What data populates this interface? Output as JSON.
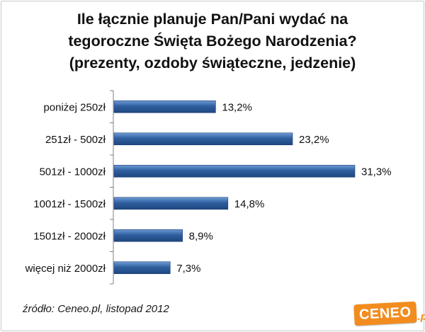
{
  "title_lines": [
    "Ile łącznie planuje Pan/Pani wydać na",
    "tegoroczne Święta Bożego Narodzenia?",
    "(prezenty, ozdoby świąteczne, jedzenie)"
  ],
  "source": "źródło: Ceneo.pl, listopad 2012",
  "logo": {
    "main": "CENEO",
    "suffix": ".pl"
  },
  "colors": {
    "bar": "#2f5f9f",
    "bar_light": "#6f9bd6",
    "axis": "#808080",
    "logo": "#f28c1e"
  },
  "chart_data": {
    "type": "bar",
    "orientation": "horizontal",
    "categories": [
      "poniżej 250zł",
      "251zł - 500zł",
      "501zł - 1000zł",
      "1001zł - 1500zł",
      "1501zł - 2000zł",
      "więcej niż 2000zł"
    ],
    "values": [
      13.2,
      23.2,
      31.3,
      14.8,
      8.9,
      7.3
    ],
    "data_labels": [
      "13,2%",
      "23,2%",
      "31,3%",
      "14,8%",
      "8,9%",
      "7,3%"
    ],
    "xlim": [
      0,
      31.3
    ],
    "grid": false,
    "legend": "none"
  }
}
